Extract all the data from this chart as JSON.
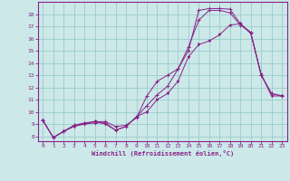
{
  "xlabel": "Windchill (Refroidissement éolien,°C)",
  "bg_color": "#cce8e8",
  "grid_color": "#99cccc",
  "line_color": "#882288",
  "spine_color": "#882288",
  "xlim": [
    -0.5,
    23.5
  ],
  "ylim": [
    7.6,
    19.0
  ],
  "xticks": [
    0,
    1,
    2,
    3,
    4,
    5,
    6,
    7,
    8,
    9,
    10,
    11,
    12,
    13,
    14,
    15,
    16,
    17,
    18,
    19,
    20,
    21,
    22,
    23
  ],
  "yticks": [
    8,
    9,
    10,
    11,
    12,
    13,
    14,
    15,
    16,
    17,
    18
  ],
  "series1_x": [
    0,
    1,
    2,
    3,
    4,
    5,
    6,
    7,
    8,
    9,
    10,
    11,
    12,
    13,
    14,
    15,
    16,
    17,
    18,
    19,
    20,
    21,
    22,
    23
  ],
  "series1_y": [
    9.3,
    7.9,
    8.4,
    8.9,
    9.0,
    9.1,
    9.1,
    8.5,
    8.8,
    9.6,
    10.5,
    11.4,
    12.1,
    13.5,
    15.0,
    18.3,
    18.45,
    18.45,
    18.4,
    17.2,
    16.5,
    13.0,
    11.5,
    11.3
  ],
  "series2_x": [
    0,
    1,
    2,
    3,
    4,
    5,
    6,
    7,
    8,
    9,
    10,
    11,
    12,
    13,
    14,
    15,
    16,
    17,
    18,
    19,
    20,
    21,
    22,
    23
  ],
  "series2_y": [
    9.3,
    7.9,
    8.4,
    8.9,
    9.1,
    9.2,
    9.2,
    8.8,
    8.9,
    9.5,
    11.3,
    12.5,
    13.0,
    13.5,
    15.3,
    17.5,
    18.3,
    18.3,
    18.1,
    17.1,
    16.5,
    13.0,
    11.5,
    11.3
  ],
  "series3_x": [
    0,
    1,
    2,
    3,
    4,
    5,
    6,
    7,
    8,
    9,
    10,
    11,
    12,
    13,
    14,
    15,
    16,
    17,
    18,
    19,
    20,
    21,
    22,
    23
  ],
  "series3_y": [
    9.3,
    7.9,
    8.4,
    8.8,
    9.0,
    9.2,
    9.0,
    8.5,
    8.8,
    9.6,
    10.0,
    11.0,
    11.5,
    12.5,
    14.5,
    15.5,
    15.8,
    16.3,
    17.1,
    17.2,
    16.4,
    13.1,
    11.3,
    11.3
  ]
}
